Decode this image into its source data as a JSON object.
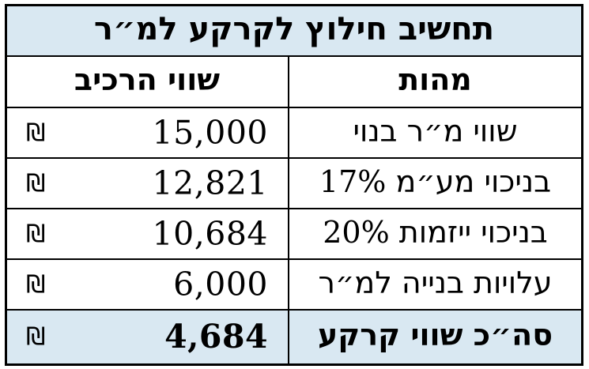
{
  "table": {
    "title": "תחשיב חילוץ לקרקע למ״ר",
    "columns": {
      "value_label": "שווי הרכיב",
      "essence_label": "מהות"
    },
    "currency_symbol": "₪",
    "rows": [
      {
        "essence": "שווי מ״ר בנוי",
        "value": "15,000"
      },
      {
        "essence": "בניכוי מע״מ 17%",
        "value": "12,821"
      },
      {
        "essence": "בניכוי ייזמות 20%",
        "value": "10,684"
      },
      {
        "essence": "עלויות בנייה למ״ר",
        "value": "6,000"
      }
    ],
    "total_row": {
      "essence": "סה״כ שווי קרקע",
      "value": "4,684"
    },
    "colors": {
      "highlight": "#d9e8f2",
      "border": "#000000",
      "text": "#000000",
      "background": "#ffffff"
    }
  }
}
